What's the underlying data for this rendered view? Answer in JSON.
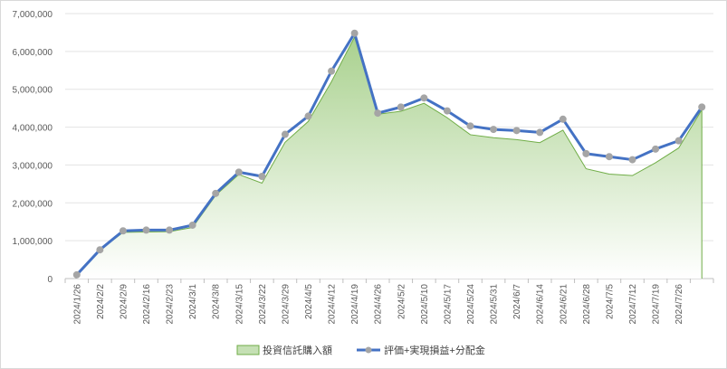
{
  "chart_data": {
    "type": "area+line",
    "title": "",
    "xlabel": "",
    "ylabel": "",
    "ylim": [
      0,
      7000000
    ],
    "y_ticks": [
      "0",
      "1,000,000",
      "2,000,000",
      "3,000,000",
      "4,000,000",
      "5,000,000",
      "6,000,000",
      "7,000,000"
    ],
    "y_tick_values": [
      0,
      1000000,
      2000000,
      3000000,
      4000000,
      5000000,
      6000000,
      7000000
    ],
    "categories": [
      "2024/1/26",
      "2024/2/2",
      "2024/2/9",
      "2024/2/16",
      "2024/2/23",
      "2024/3/1",
      "2024/3/8",
      "2024/3/15",
      "2024/3/22",
      "2024/3/29",
      "2024/4/5",
      "2024/4/12",
      "2024/4/19",
      "2024/4/26",
      "2024/5/2",
      "2024/5/10",
      "2024/5/17",
      "2024/5/24",
      "2024/5/31",
      "2024/6/7",
      "2024/6/14",
      "2024/6/21",
      "2024/6/28",
      "2024/7/5",
      "2024/7/12",
      "2024/7/19",
      "2024/7/26",
      ""
    ],
    "grid": true,
    "legend_position": "bottom",
    "series": [
      {
        "name": "投資信託購入額",
        "type": "area",
        "color": "#70ad47",
        "values": [
          100000,
          750000,
          1220000,
          1230000,
          1240000,
          1350000,
          2200000,
          2750000,
          2520000,
          3600000,
          4150000,
          5200000,
          6380000,
          4340000,
          4420000,
          4630000,
          4250000,
          3800000,
          3720000,
          3670000,
          3590000,
          3920000,
          2900000,
          2760000,
          2720000,
          3060000,
          3450000,
          4460000
        ]
      },
      {
        "name": "評価+実現損益+分配金",
        "type": "line",
        "color": "#4472c4",
        "marker_color": "#a5a5a5",
        "values": [
          100000,
          760000,
          1260000,
          1280000,
          1280000,
          1410000,
          2250000,
          2810000,
          2700000,
          3810000,
          4290000,
          5480000,
          6480000,
          4370000,
          4530000,
          4770000,
          4430000,
          4030000,
          3940000,
          3910000,
          3860000,
          4210000,
          3300000,
          3220000,
          3140000,
          3420000,
          3640000,
          4530000
        ]
      }
    ]
  }
}
